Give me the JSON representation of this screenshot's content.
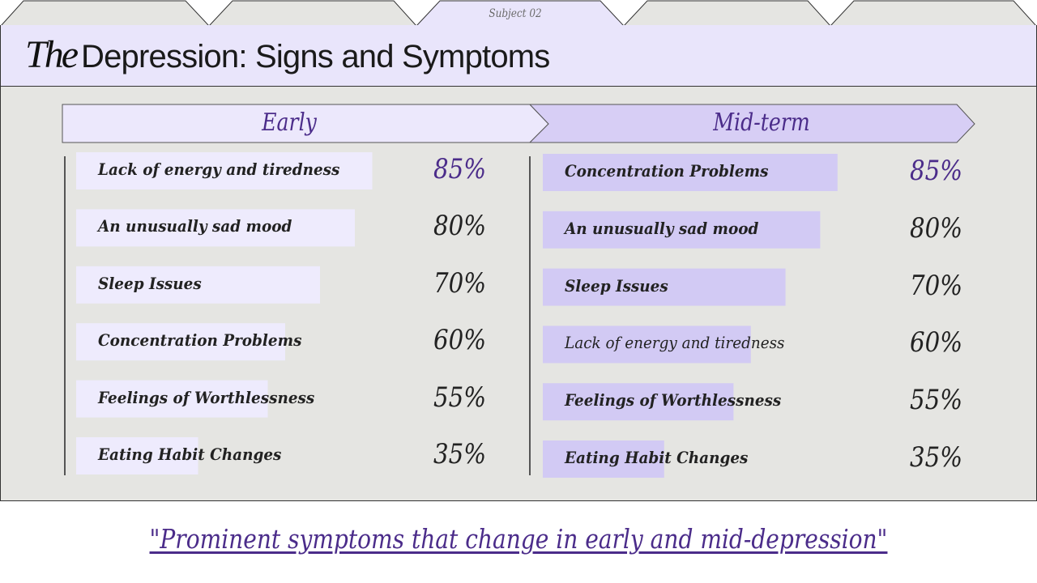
{
  "tabs": [
    "",
    "",
    "Subject 02",
    "",
    ""
  ],
  "header": {
    "title_prefix": "The",
    "title": "Depression: Signs and Symptoms"
  },
  "colors": {
    "accent": "#4b2c8a",
    "bar_early": "#eeebfd",
    "bar_mid": "#d2caf4",
    "header_bg": "#e9e5fb",
    "panel_bg": "#e5e5e2"
  },
  "chart_data": [
    {
      "type": "bar",
      "title": "Early",
      "categories": [
        "Lack of energy and tiredness",
        "An unusually sad mood",
        "Sleep Issues",
        "Concentration Problems",
        "Feelings of Worthlessness",
        "Eating Habit Changes"
      ],
      "values": [
        85,
        80,
        70,
        60,
        55,
        35
      ],
      "value_labels": [
        "85%",
        "80%",
        "70%",
        "60%",
        "55%",
        "35%"
      ],
      "unit": "%"
    },
    {
      "type": "bar",
      "title": "Mid-term",
      "categories": [
        "Concentration Problems",
        "An unusually sad mood",
        "Sleep Issues",
        "Lack of energy and tiredness",
        "Feelings of Worthlessness",
        "Eating Habit Changes"
      ],
      "values": [
        85,
        80,
        70,
        60,
        55,
        35
      ],
      "value_labels": [
        "85%",
        "80%",
        "70%",
        "60%",
        "55%",
        "35%"
      ],
      "unit": "%"
    }
  ],
  "caption": "\"Prominent symptoms that change in early and mid-depression\""
}
